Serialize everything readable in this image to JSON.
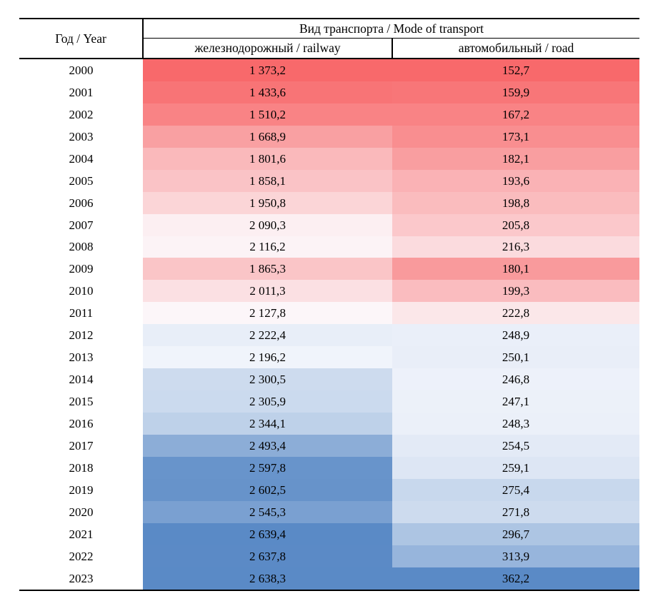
{
  "table": {
    "header": {
      "year_label": "Год / Year",
      "group_label": "Вид транспорта / Mode of transport",
      "railway_label": "железнодорожный / railway",
      "road_label": "автомобильный / road"
    },
    "rows": [
      {
        "year": "2000",
        "railway": "1 373,2",
        "road": "152,7"
      },
      {
        "year": "2001",
        "railway": "1 433,6",
        "road": "159,9"
      },
      {
        "year": "2002",
        "railway": "1 510,2",
        "road": "167,2"
      },
      {
        "year": "2003",
        "railway": "1 668,9",
        "road": "173,1"
      },
      {
        "year": "2004",
        "railway": "1 801,6",
        "road": "182,1"
      },
      {
        "year": "2005",
        "railway": "1 858,1",
        "road": "193,6"
      },
      {
        "year": "2006",
        "railway": "1 950,8",
        "road": "198,8"
      },
      {
        "year": "2007",
        "railway": "2 090,3",
        "road": "205,8"
      },
      {
        "year": "2008",
        "railway": "2 116,2",
        "road": "216,3"
      },
      {
        "year": "2009",
        "railway": "1 865,3",
        "road": "180,1"
      },
      {
        "year": "2010",
        "railway": "2 011,3",
        "road": "199,3"
      },
      {
        "year": "2011",
        "railway": "2 127,8",
        "road": "222,8"
      },
      {
        "year": "2012",
        "railway": "2 222,4",
        "road": "248,9"
      },
      {
        "year": "2013",
        "railway": "2 196,2",
        "road": "250,1"
      },
      {
        "year": "2014",
        "railway": "2 300,5",
        "road": "246,8"
      },
      {
        "year": "2015",
        "railway": "2 305,9",
        "road": "247,1"
      },
      {
        "year": "2016",
        "railway": "2 344,1",
        "road": "248,3"
      },
      {
        "year": "2017",
        "railway": "2 493,4",
        "road": "254,5"
      },
      {
        "year": "2018",
        "railway": "2 597,8",
        "road": "259,1"
      },
      {
        "year": "2019",
        "railway": "2 602,5",
        "road": "275,4"
      },
      {
        "year": "2020",
        "railway": "2 545,3",
        "road": "271,8"
      },
      {
        "year": "2021",
        "railway": "2 639,4",
        "road": "296,7"
      },
      {
        "year": "2022",
        "railway": "2 637,8",
        "road": "313,9"
      },
      {
        "year": "2023",
        "railway": "2 638,3",
        "road": "362,2"
      }
    ],
    "color_scale": {
      "type": "3-color diverging, per column, midpoint at 50th percentile",
      "low": "#F8696B",
      "mid": "#FCFCFF",
      "high": "#5A8AC6"
    },
    "colors": {
      "text": "#000000",
      "border": "#000000",
      "background": "#FFFFFF"
    }
  },
  "chart_data": {
    "type": "table",
    "title": "",
    "categories": [
      2000,
      2001,
      2002,
      2003,
      2004,
      2005,
      2006,
      2007,
      2008,
      2009,
      2010,
      2011,
      2012,
      2013,
      2014,
      2015,
      2016,
      2017,
      2018,
      2019,
      2020,
      2021,
      2022,
      2023
    ],
    "categories_label": "Год / Year",
    "group_label": "Вид транспорта / Mode of transport",
    "series": [
      {
        "name": "железнодорожный / railway",
        "values": [
          1373.2,
          1433.6,
          1510.2,
          1668.9,
          1801.6,
          1858.1,
          1950.8,
          2090.3,
          2116.2,
          1865.3,
          2011.3,
          2127.8,
          2222.4,
          2196.2,
          2300.5,
          2305.9,
          2344.1,
          2493.4,
          2597.8,
          2602.5,
          2545.3,
          2639.4,
          2637.8,
          2638.3
        ]
      },
      {
        "name": "автомобильный / road",
        "values": [
          152.7,
          159.9,
          167.2,
          173.1,
          182.1,
          193.6,
          198.8,
          205.8,
          216.3,
          180.1,
          199.3,
          222.8,
          248.9,
          250.1,
          246.8,
          247.1,
          248.3,
          254.5,
          259.1,
          275.4,
          271.8,
          296.7,
          313.9,
          362.2
        ]
      }
    ],
    "style": "heatmap cells: red (#F8696B) = column min, white (#FCFCFF) = column median, blue (#5A8AC6) = column max"
  }
}
